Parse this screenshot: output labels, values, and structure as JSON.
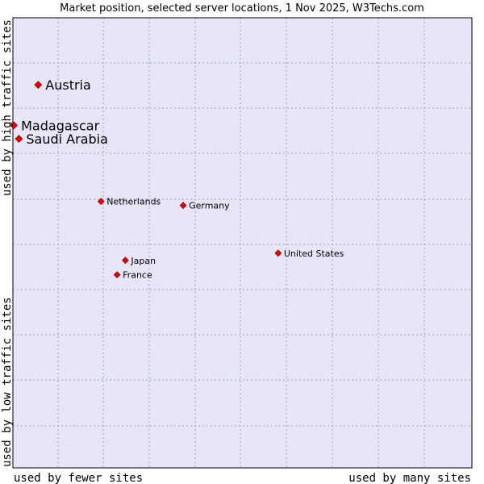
{
  "chart_data": {
    "type": "scatter",
    "title": "Market position, selected server locations, 1 Nov 2025, W3Techs.com",
    "x_axis": {
      "label_low": "used by fewer sites",
      "label_high": "used by many sites",
      "range": [
        0,
        100
      ]
    },
    "y_axis": {
      "label_low": "used by low traffic sites",
      "label_high": "used by high traffic sites",
      "range": [
        0,
        100
      ]
    },
    "grid": true,
    "colors": {
      "plot_background": "#e6e6f8",
      "grid": "#a0a0c0",
      "frame": "#000000",
      "marker": "#e00000"
    },
    "points": [
      {
        "name": "Austria",
        "x": 5.5,
        "y": 85.1,
        "emphasis": "large"
      },
      {
        "name": "Madagascar",
        "x": 0.2,
        "y": 76.1,
        "emphasis": "large"
      },
      {
        "name": "Saudi Arabia",
        "x": 1.3,
        "y": 73.1,
        "emphasis": "large"
      },
      {
        "name": "Netherlands",
        "x": 19.2,
        "y": 59.2,
        "emphasis": "normal"
      },
      {
        "name": "Germany",
        "x": 37.1,
        "y": 58.3,
        "emphasis": "normal"
      },
      {
        "name": "United States",
        "x": 57.8,
        "y": 47.7,
        "emphasis": "normal"
      },
      {
        "name": "Japan",
        "x": 24.5,
        "y": 46.1,
        "emphasis": "normal"
      },
      {
        "name": "France",
        "x": 22.7,
        "y": 42.9,
        "emphasis": "normal"
      }
    ]
  }
}
